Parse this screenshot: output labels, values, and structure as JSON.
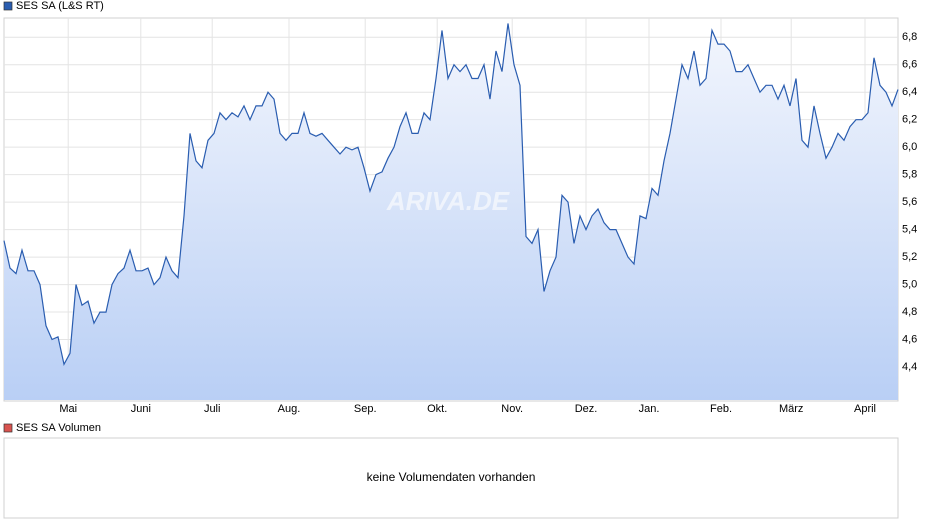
{
  "chart_data": {
    "type": "line",
    "title": "SES SA (L&S RT)",
    "watermark": "ARIVA.DE",
    "series": [
      {
        "name": "SES SA (L&S RT)",
        "color": "#2a5db0",
        "values": [
          5.32,
          5.12,
          5.08,
          5.25,
          5.1,
          5.1,
          5.0,
          4.7,
          4.6,
          4.62,
          4.42,
          4.5,
          5.0,
          4.85,
          4.88,
          4.72,
          4.8,
          4.8,
          5.0,
          5.08,
          5.12,
          5.25,
          5.1,
          5.1,
          5.12,
          5.0,
          5.05,
          5.2,
          5.1,
          5.05,
          5.5,
          6.1,
          5.9,
          5.85,
          6.05,
          6.1,
          6.25,
          6.2,
          6.25,
          6.22,
          6.3,
          6.2,
          6.3,
          6.3,
          6.4,
          6.35,
          6.1,
          6.05,
          6.1,
          6.1,
          6.25,
          6.1,
          6.08,
          6.1,
          6.05,
          6.0,
          5.95,
          6.0,
          5.98,
          6.0,
          5.85,
          5.68,
          5.8,
          5.82,
          5.92,
          6.0,
          6.15,
          6.25,
          6.1,
          6.1,
          6.25,
          6.2,
          6.5,
          6.85,
          6.5,
          6.6,
          6.55,
          6.6,
          6.5,
          6.5,
          6.6,
          6.35,
          6.7,
          6.55,
          6.9,
          6.6,
          6.45,
          5.35,
          5.3,
          5.4,
          4.95,
          5.1,
          5.2,
          5.65,
          5.6,
          5.3,
          5.5,
          5.4,
          5.5,
          5.55,
          5.45,
          5.4,
          5.4,
          5.3,
          5.2,
          5.15,
          5.5,
          5.48,
          5.7,
          5.65,
          5.9,
          6.1,
          6.35,
          6.6,
          6.5,
          6.7,
          6.45,
          6.5,
          6.85,
          6.75,
          6.75,
          6.7,
          6.55,
          6.55,
          6.6,
          6.5,
          6.4,
          6.45,
          6.45,
          6.35,
          6.45,
          6.3,
          6.5,
          6.05,
          6.0,
          6.3,
          6.1,
          5.92,
          6.0,
          6.1,
          6.05,
          6.15,
          6.2,
          6.2,
          6.25,
          6.65,
          6.45,
          6.4,
          6.3,
          6.42
        ]
      }
    ],
    "xticks": [
      {
        "value": 10.7,
        "label": "Mai"
      },
      {
        "value": 22.8,
        "label": "Juni"
      },
      {
        "value": 34.7,
        "label": "Juli"
      },
      {
        "value": 47.5,
        "label": "Aug."
      },
      {
        "value": 60.2,
        "label": "Sep."
      },
      {
        "value": 72.2,
        "label": "Okt."
      },
      {
        "value": 84.7,
        "label": "Nov."
      },
      {
        "value": 97,
        "label": "Dez."
      },
      {
        "value": 107.5,
        "label": "Jan."
      },
      {
        "value": 119.5,
        "label": "Feb."
      },
      {
        "value": 131.2,
        "label": "März"
      },
      {
        "value": 143.5,
        "label": "April"
      }
    ],
    "ylim": [
      4.16,
      6.94
    ],
    "yticks": [
      {
        "value": 4.4,
        "label": "4,4"
      },
      {
        "value": 4.6,
        "label": "4,6"
      },
      {
        "value": 4.8,
        "label": "4,8"
      },
      {
        "value": 5.0,
        "label": "5,0"
      },
      {
        "value": 5.2,
        "label": "5,2"
      },
      {
        "value": 5.4,
        "label": "5,4"
      },
      {
        "value": 5.6,
        "label": "5,6"
      },
      {
        "value": 5.8,
        "label": "5,8"
      },
      {
        "value": 6.0,
        "label": "6,0"
      },
      {
        "value": 6.2,
        "label": "6,2"
      },
      {
        "value": 6.4,
        "label": "6,4"
      },
      {
        "value": 6.6,
        "label": "6,6"
      },
      {
        "value": 6.8,
        "label": "6,8"
      }
    ],
    "grid": true
  },
  "volume_panel": {
    "title": "SES SA Volumen",
    "color": "#d9534f",
    "message": "keine Volumendaten vorhanden"
  }
}
